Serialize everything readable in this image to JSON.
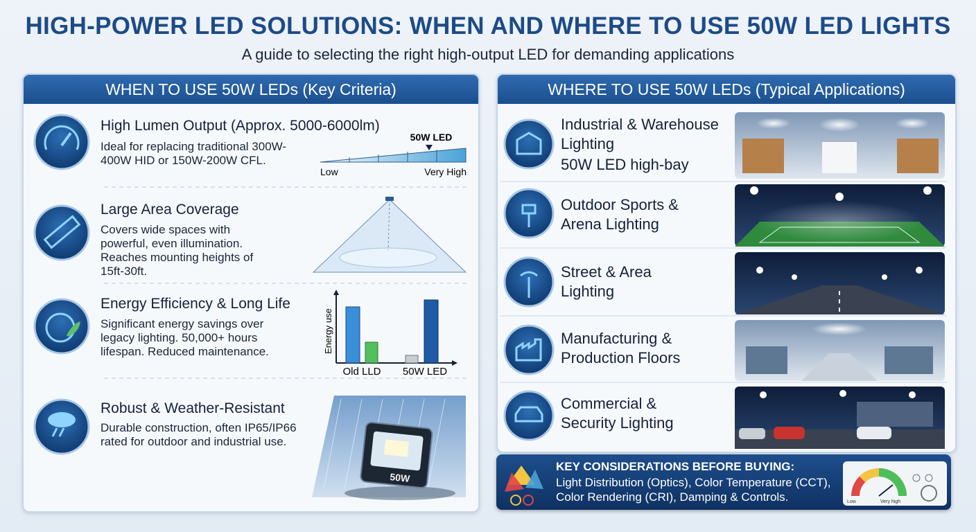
{
  "header": {
    "title": "HIGH-POWER LED SOLUTIONS: WHEN AND WHERE TO USE 50W LED LIGHTS",
    "subtitle": "A guide to selecting the right high-output LED for demanding applications"
  },
  "when": {
    "heading": "WHEN TO USE 50W LEDs (Key Criteria)",
    "items": [
      {
        "title": "High Lumen Output (Approx. 5000-6000lm)",
        "description": "Ideal for replacing traditional 300W-400W HID or 150W-200W CFL."
      },
      {
        "title": "Large Area Coverage",
        "description": "Covers wide spaces with powerful, even illumination. Reaches mounting heights of 15ft-30ft."
      },
      {
        "title": "Energy Efficiency & Long Life",
        "description": "Significant energy savings over legacy lighting. 50,000+ hours lifespan. Reduced maintenance."
      },
      {
        "title": "Robust & Weather-Resistant",
        "description": "Durable construction, often IP65/IP66 rated for outdoor and industrial use."
      }
    ],
    "lumen_scale": {
      "marker": "50W LED",
      "low": "Low",
      "high": "Very High"
    },
    "energy_chart": {
      "axis_label": "Energy use",
      "categories": [
        "Old LLD",
        "50W LED"
      ]
    },
    "floodlight_label": "50W"
  },
  "where": {
    "heading": "WHERE TO USE 50W LEDs (Typical Applications)",
    "items": [
      {
        "title": "Industrial & Warehouse Lighting",
        "subtitle": "50W LED high-bay"
      },
      {
        "title": "Outdoor Sports & Arena Lighting"
      },
      {
        "title": "Street & Area Lighting"
      },
      {
        "title": "Manufacturing & Production Floors"
      },
      {
        "title": "Commercial & Security Lighting"
      }
    ]
  },
  "key": {
    "title": "KEY CONSIDERATIONS BEFORE BUYING:",
    "text": "Light Distribution (Optics), Color Temperature (CCT), Color Rendering (CRI), Damping & Controls.",
    "gauge_low": "Low",
    "gauge_high": "Very high"
  }
}
